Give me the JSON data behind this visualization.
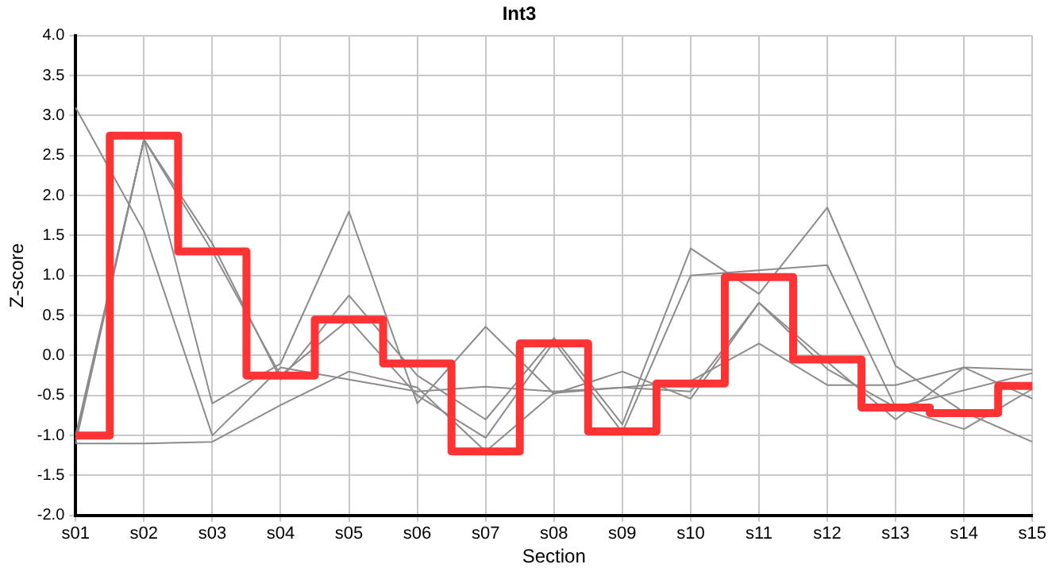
{
  "chart_data": {
    "type": "line",
    "title": "Int3",
    "xlabel": "Section",
    "ylabel": "Z-score",
    "categories": [
      "s01",
      "s02",
      "s03",
      "s04",
      "s05",
      "s06",
      "s07",
      "s08",
      "s09",
      "s10",
      "s11",
      "s12",
      "s13",
      "s14",
      "s15"
    ],
    "series": [
      {
        "color": "#8c8c8c",
        "values": [
          3.1,
          1.55,
          -1.0,
          -0.15,
          -0.3,
          -0.45,
          -0.39,
          -0.45,
          -0.4,
          -0.32,
          0.15,
          -0.37,
          -0.37,
          -0.15,
          -0.18
        ]
      },
      {
        "color": "#8c8c8c",
        "values": [
          -1.0,
          2.7,
          1.4,
          -0.3,
          0.75,
          -0.25,
          -0.8,
          0.22,
          -0.86,
          1.34,
          0.77,
          1.85,
          -0.13,
          -0.71,
          -1.08
        ]
      },
      {
        "color": "#8c8c8c",
        "values": [
          -1.05,
          2.7,
          1.3,
          -0.25,
          0.45,
          -0.5,
          -1.03,
          0.17,
          -0.96,
          1.0,
          null,
          1.13,
          -0.65,
          -0.92,
          -0.42
        ]
      },
      {
        "color": "#8c8c8c",
        "values": [
          -1.1,
          2.7,
          -0.6,
          -0.1,
          1.8,
          -0.6,
          0.36,
          -0.48,
          -0.2,
          -0.54,
          0.66,
          -0.08,
          -0.8,
          -0.15,
          -0.54
        ]
      },
      {
        "color": "#8c8c8c",
        "values": [
          -1.1,
          -1.1,
          -1.08,
          -0.62,
          -0.2,
          -0.4,
          -1.2,
          -0.47,
          -0.4,
          -0.45,
          0.66,
          -0.17,
          -0.65,
          null,
          -0.22
        ]
      },
      {
        "type": "step",
        "color": "#ff3333",
        "values": [
          -1.0,
          2.75,
          1.3,
          -0.25,
          0.45,
          -0.1,
          -1.2,
          0.15,
          -0.95,
          -0.35,
          0.98,
          -0.05,
          -0.65,
          -0.72,
          -0.38
        ]
      }
    ],
    "ylim": [
      -2,
      4
    ],
    "yticks": [
      {
        "value": -2,
        "label": "-2.0"
      },
      {
        "value": -1.5,
        "label": "-1.5"
      },
      {
        "value": -1,
        "label": "-1.0"
      },
      {
        "value": -0.5,
        "label": "-0.5"
      },
      {
        "value": 0,
        "label": "0.0"
      },
      {
        "value": 0.5,
        "label": "0.5"
      },
      {
        "value": 1,
        "label": "1.0"
      },
      {
        "value": 1.5,
        "label": "1.5"
      },
      {
        "value": 2,
        "label": "2.0"
      },
      {
        "value": 2.5,
        "label": "2.5"
      },
      {
        "value": 3,
        "label": "3.0"
      },
      {
        "value": 3.5,
        "label": "3.5"
      },
      {
        "value": 4,
        "label": "4.0"
      }
    ],
    "grid": true,
    "legend": false,
    "marker": "none"
  }
}
